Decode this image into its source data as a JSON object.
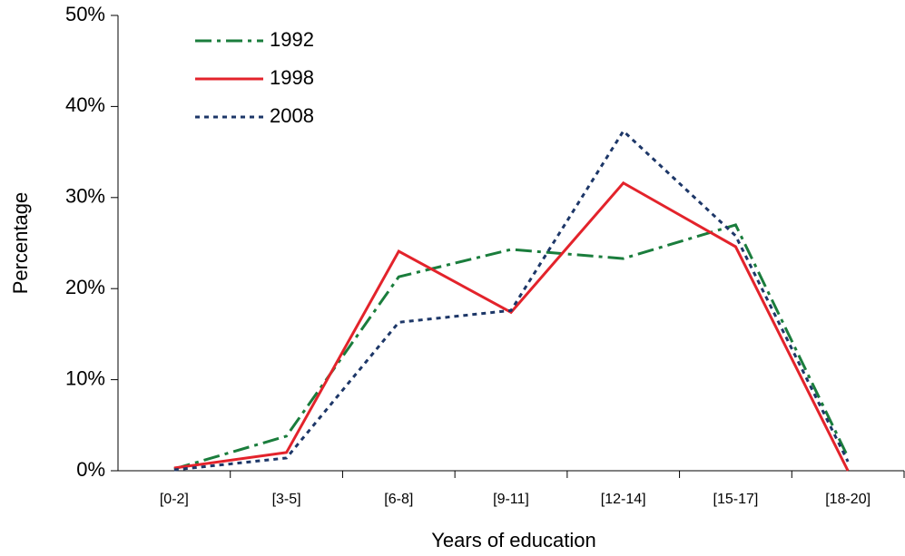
{
  "chart_data": {
    "type": "line",
    "x_label": "Years of education",
    "y_label": "Percentage",
    "categories": [
      "[0-2]",
      "[3-5]",
      "[6-8]",
      "[9-11]",
      "[12-14]",
      "[15-17]",
      "[18-20]"
    ],
    "series": [
      {
        "name": "1992",
        "color": "#1a7d3c",
        "style": "dashdot",
        "values": [
          0.2,
          3.8,
          21.3,
          24.3,
          23.3,
          27.0,
          1.5
        ]
      },
      {
        "name": "1998",
        "color": "#e3232b",
        "style": "solid",
        "values": [
          0.3,
          2.0,
          24.1,
          17.4,
          31.6,
          24.6,
          0
        ]
      },
      {
        "name": "2008",
        "color": "#1d3768",
        "style": "dotted",
        "values": [
          0.1,
          1.4,
          16.3,
          17.6,
          37.3,
          25.8,
          1.0
        ]
      }
    ],
    "ylim": [
      0,
      50
    ],
    "yticks": [
      {
        "value": 0,
        "label": "0%"
      },
      {
        "value": 10,
        "label": "10%"
      },
      {
        "value": 20,
        "label": "20%"
      },
      {
        "value": 30,
        "label": "30%"
      },
      {
        "value": 40,
        "label": "40%"
      },
      {
        "value": 50,
        "label": "50%"
      }
    ],
    "grid": false,
    "legend": "top-left"
  }
}
